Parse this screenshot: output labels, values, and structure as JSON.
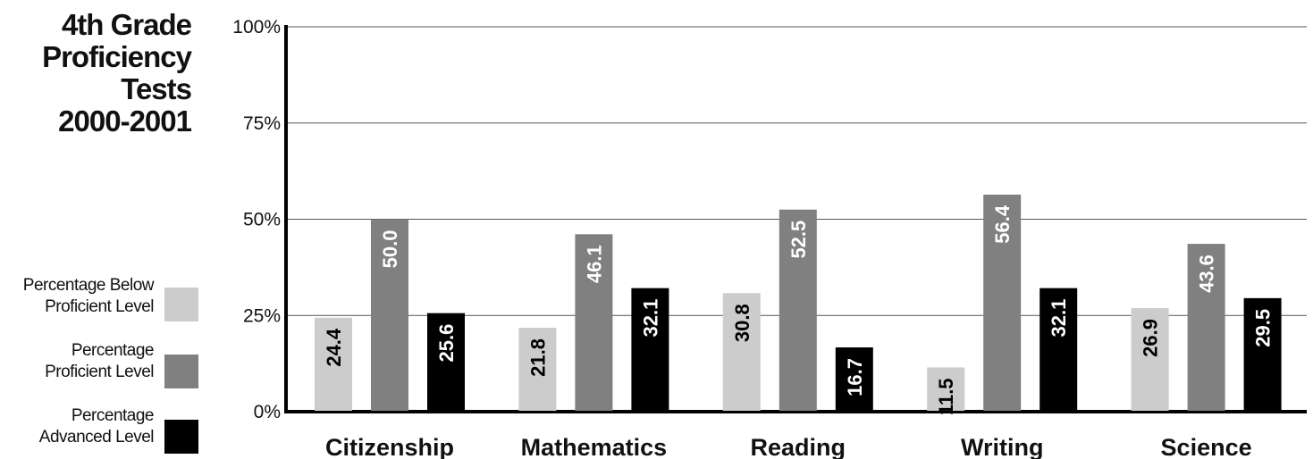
{
  "title_lines": [
    "4th Grade",
    "Proficiency",
    "Tests",
    "2000-2001"
  ],
  "legend": [
    {
      "lines": [
        "Percentage Below",
        "Proficient Level"
      ],
      "color": "#cccccc"
    },
    {
      "lines": [
        "Percentage",
        "Proficient Level"
      ],
      "color": "#808080"
    },
    {
      "lines": [
        "Percentage",
        "Advanced Level"
      ],
      "color": "#000000"
    }
  ],
  "chart_data": {
    "type": "bar",
    "categories": [
      "Citizenship",
      "Mathematics",
      "Reading",
      "Writing",
      "Science"
    ],
    "series": [
      {
        "values": [
          24.4,
          21.8,
          30.8,
          11.5,
          26.9
        ],
        "color": "#cccccc",
        "label_color": "#000000"
      },
      {
        "values": [
          50.0,
          46.1,
          52.5,
          56.4,
          43.6
        ],
        "color": "#808080",
        "label_color": "#ffffff"
      },
      {
        "values": [
          25.6,
          32.1,
          16.7,
          32.1,
          29.5
        ],
        "color": "#000000",
        "label_color": "#ffffff"
      }
    ],
    "yticks": [
      "0%",
      "25%",
      "50%",
      "75%",
      "100%"
    ],
    "ylim": [
      0,
      100
    ],
    "grid": true
  }
}
